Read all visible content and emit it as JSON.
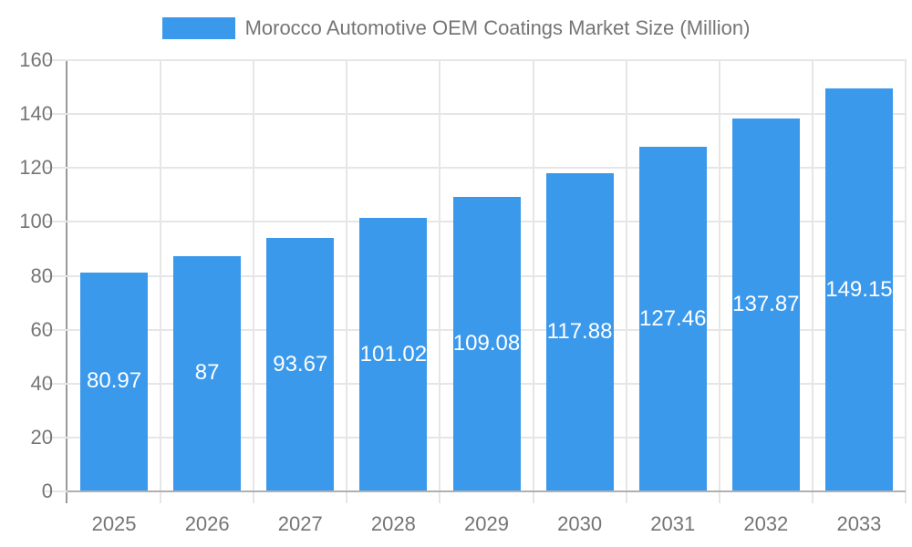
{
  "chart_data": {
    "type": "bar",
    "title": "Morocco Automotive OEM Coatings Market Size (Million)",
    "legend_position": "top",
    "categories": [
      "2025",
      "2026",
      "2027",
      "2028",
      "2029",
      "2030",
      "2031",
      "2032",
      "2033"
    ],
    "values": [
      80.97,
      87,
      93.67,
      101.02,
      109.08,
      117.88,
      127.46,
      137.87,
      149.15
    ],
    "value_labels": [
      "80.97",
      "87",
      "93.67",
      "101.02",
      "109.08",
      "117.88",
      "127.46",
      "137.87",
      "149.15"
    ],
    "xlabel": "",
    "ylabel": "",
    "ylim": [
      0,
      160
    ],
    "yticks": [
      0,
      20,
      40,
      60,
      80,
      100,
      120,
      140,
      160
    ],
    "grid": true,
    "colors": {
      "bar": "#3B99EC",
      "gridline": "#E6E6E6",
      "axis_line": "#999999",
      "baseline": "#B0B0B0",
      "tick_label": "#757575",
      "value_label": "#FFFFFF",
      "legend_text": "#757575"
    }
  }
}
